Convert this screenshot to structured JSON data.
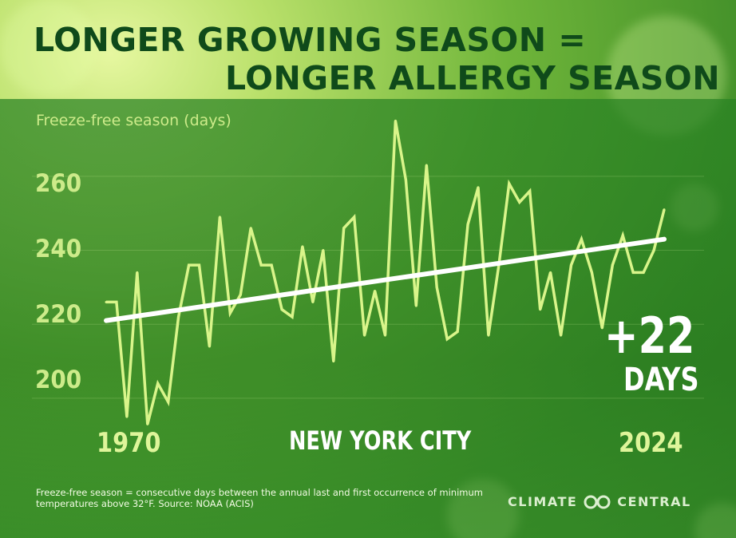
{
  "title_line1": "LONGER GROWING SEASON =",
  "title_line2": "LONGER ALLERGY SEASON",
  "location": "NEW YORK CITY",
  "change_value": "+22",
  "change_unit": "DAYS",
  "footnote": "Freeze-free season = consecutive days between the annual last and first occurrence of minimum temperatures above 32°F. Source: NOAA (ACIS)",
  "brand": {
    "left": "CLIMATE",
    "right": "CENTRAL",
    "icon": "climate-central-logo"
  },
  "colors": {
    "series_line": "#d9f58a",
    "trend_line": "#ffffff",
    "title": "#0f4a1a",
    "tick_text": "#cdeb8a"
  },
  "chart_data": {
    "type": "line",
    "ylabel": "Freeze-free season (days)",
    "xlabel": "",
    "ylim": [
      192,
      274
    ],
    "xlim": [
      1970,
      2024
    ],
    "yticks": [
      200,
      220,
      240,
      260
    ],
    "xtick_labels": [
      "1970",
      "2024"
    ],
    "grid": true,
    "series": [
      {
        "x": [
          1970,
          1971,
          1972,
          1973,
          1974,
          1975,
          1976,
          1977,
          1978,
          1979,
          1980,
          1981,
          1982,
          1983,
          1984,
          1985,
          1986,
          1987,
          1988,
          1989,
          1990,
          1991,
          1992,
          1993,
          1994,
          1995,
          1996,
          1997,
          1998,
          1999,
          2000,
          2001,
          2002,
          2003,
          2004,
          2005,
          2006,
          2007,
          2008,
          2009,
          2010,
          2011,
          2012,
          2013,
          2014,
          2015,
          2016,
          2017,
          2018,
          2019,
          2020,
          2021,
          2022,
          2023,
          2024
        ],
        "y": [
          226,
          226,
          195,
          234,
          193,
          204,
          199,
          222,
          236,
          236,
          214,
          249,
          223,
          228,
          246,
          236,
          236,
          224,
          222,
          241,
          226,
          240,
          210,
          246,
          249,
          217,
          229,
          217,
          275,
          259,
          225,
          263,
          230,
          216,
          218,
          247,
          257,
          217,
          236,
          258,
          253,
          256,
          224,
          234,
          217,
          236,
          243,
          234,
          219,
          236,
          244,
          234,
          234,
          240,
          251
        ]
      },
      {
        "name": "trend",
        "x": [
          1970,
          2024
        ],
        "y": [
          221,
          243
        ]
      }
    ]
  }
}
